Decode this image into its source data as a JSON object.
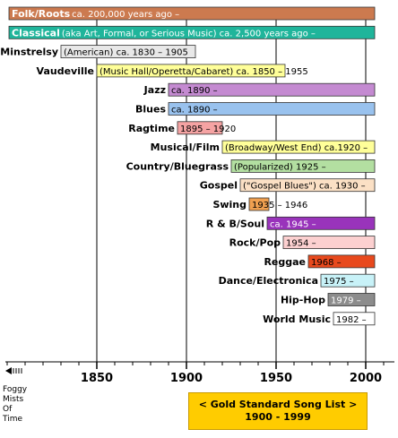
{
  "chart_data": {
    "type": "timeline",
    "x_axis": {
      "ticks": [
        1850,
        1900,
        1950,
        2000
      ],
      "range": [
        1800,
        2015
      ]
    },
    "grid": true,
    "bars": [
      {
        "name": "Folk/Roots",
        "label_inside": true,
        "start": 1800,
        "end": 2005,
        "note": "ca. 200,000 years ago –",
        "color": "#cc7a4f",
        "text_color": "#ffffff"
      },
      {
        "name": "Classical",
        "label_inside": true,
        "start": 1800,
        "end": 2005,
        "note": "(aka Art, Formal, or Serious Music) ca. 2,500 years ago –",
        "color": "#1fb59b",
        "text_color": "#ffffff"
      },
      {
        "name": "Minstrelsy",
        "start": 1830,
        "end": 1905,
        "note": "(American) ca. 1830 – 1905",
        "color": "#e8e8e8",
        "text_color": "#000000"
      },
      {
        "name": "Vaudeville",
        "start": 1850,
        "end": 1955,
        "note": "(Music Hall/Operetta/Cabaret) ca. 1850 – 1955",
        "color": "#ffff99",
        "text_color": "#000000"
      },
      {
        "name": "Jazz",
        "start": 1890,
        "end": 2005,
        "note": "ca. 1890 –",
        "color": "#c48ad1",
        "text_color": "#000000"
      },
      {
        "name": "Blues",
        "start": 1890,
        "end": 2005,
        "note": "ca. 1890 –",
        "color": "#99c2ee",
        "text_color": "#000000"
      },
      {
        "name": "Ragtime",
        "start": 1895,
        "end": 1920,
        "note": "1895 – 1920",
        "color": "#f5a3a3",
        "text_color": "#000000"
      },
      {
        "name": "Musical/Film",
        "start": 1920,
        "end": 2005,
        "note": "(Broadway/West End) ca.1920 –",
        "color": "#ffff99",
        "text_color": "#000000"
      },
      {
        "name": "Country/Bluegrass",
        "start": 1925,
        "end": 2005,
        "note": "(Popularized) 1925 –",
        "color": "#b3dfa1",
        "text_color": "#000000"
      },
      {
        "name": "Gospel",
        "start": 1930,
        "end": 2005,
        "note": "(\"Gospel Blues\") ca. 1930 –",
        "color": "#fbe0c5",
        "text_color": "#000000"
      },
      {
        "name": "Swing",
        "start": 1935,
        "end": 1946,
        "note": "1935 – 1946",
        "color": "#f0a050",
        "text_color": "#000000"
      },
      {
        "name": "R & B/Soul",
        "start": 1945,
        "end": 2005,
        "note": "ca. 1945 –",
        "color": "#9933bb",
        "text_color": "#ffffff"
      },
      {
        "name": "Rock/Pop",
        "start": 1954,
        "end": 2005,
        "note": "1954 –",
        "color": "#fcd0d0",
        "text_color": "#000000"
      },
      {
        "name": "Reggae",
        "start": 1968,
        "end": 2005,
        "note": "1968 –",
        "color": "#e8491d",
        "text_color": "#000000"
      },
      {
        "name": "Dance/Electronica",
        "start": 1975,
        "end": 2005,
        "note": "1975 –",
        "color": "#c8f2f8",
        "text_color": "#000000"
      },
      {
        "name": "Hip-Hop",
        "start": 1979,
        "end": 2005,
        "note": "1979 –",
        "color": "#8c8c8c",
        "text_color": "#ffffff"
      },
      {
        "name": "World Music",
        "start": 1982,
        "end": 2005,
        "note": "1982 –",
        "color": "#ffffff",
        "text_color": "#000000"
      }
    ]
  },
  "foggy_label": [
    "Foggy",
    "Mists",
    "Of",
    "Time"
  ],
  "gold_box": {
    "line1": "< Gold Standard Song List >",
    "line2": "1900 - 1999",
    "color": "#ffcc00"
  }
}
